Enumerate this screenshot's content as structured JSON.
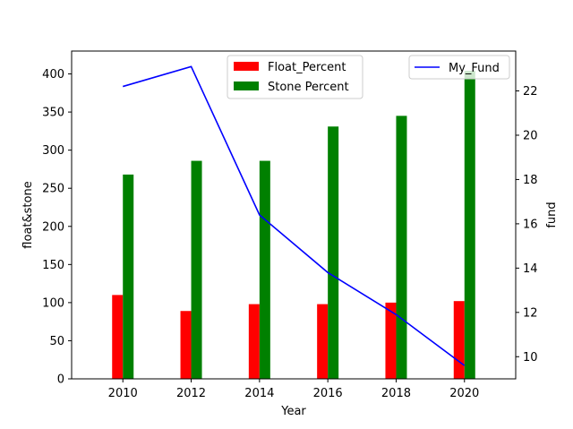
{
  "chart_data": {
    "type": "bar",
    "title": "",
    "xlabel": "Year",
    "ylabel_left": "float&stone",
    "ylabel_right": "fund",
    "categories": [
      "2010",
      "2012",
      "2014",
      "2016",
      "2018",
      "2020"
    ],
    "x": [
      2010,
      2012,
      2014,
      2016,
      2018,
      2020
    ],
    "xlim": [
      2008.5,
      2021.5
    ],
    "ylim_left": [
      0,
      430
    ],
    "ylim_right": [
      9.0,
      23.8
    ],
    "yticks_left": [
      0,
      50,
      100,
      150,
      200,
      250,
      300,
      350,
      400
    ],
    "yticks_right": [
      10,
      12,
      14,
      16,
      18,
      20,
      22
    ],
    "bar_series": [
      {
        "name": "Float_Percent",
        "color": "#ff0000",
        "values": [
          110,
          89,
          98,
          98,
          100,
          102
        ]
      },
      {
        "name": "Stone Percent",
        "color": "#008000",
        "values": [
          268,
          286,
          286,
          331,
          345,
          404
        ]
      }
    ],
    "line_series": [
      {
        "name": "My_Fund",
        "color": "#0000ff",
        "values": [
          22.2,
          23.1,
          16.4,
          13.8,
          11.9,
          9.6
        ]
      }
    ],
    "legend_bars": "top-center",
    "legend_line": "top-right",
    "grid": false
  }
}
